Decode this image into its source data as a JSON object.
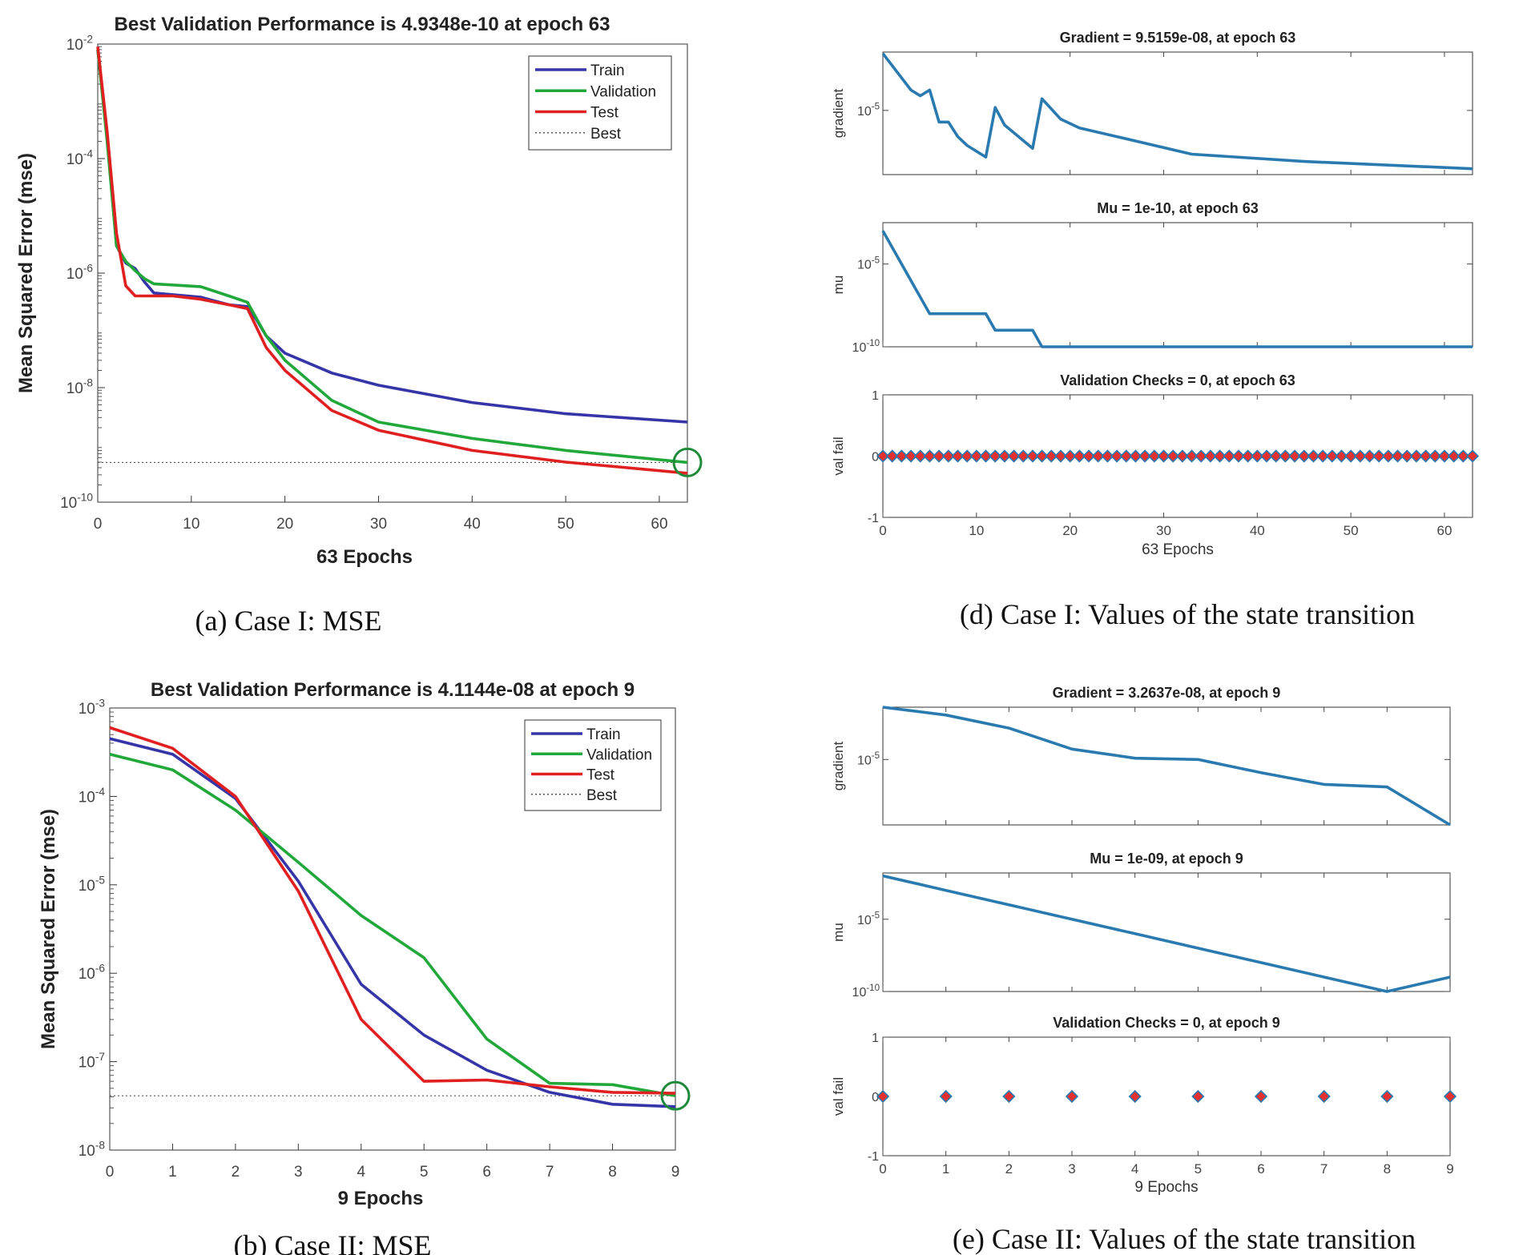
{
  "chart_data": [
    {
      "type": "line",
      "id": "a",
      "title": "Best Validation Performance is 4.9348e-10 at epoch 63",
      "xlabel": "63 Epochs",
      "ylabel": "Mean Squared Error  (mse)",
      "caption": "(a) Case I: MSE",
      "yscale": "log",
      "xlim": [
        0,
        63
      ],
      "ylim_log10": [
        -10,
        -2
      ],
      "xticks": [
        "0",
        "10",
        "20",
        "30",
        "40",
        "50",
        "60"
      ],
      "yticks": [
        {
          "base": "10",
          "exp": "-2"
        },
        {
          "base": "10",
          "exp": "-4"
        },
        {
          "base": "10",
          "exp": "-6"
        },
        {
          "base": "10",
          "exp": "-8"
        },
        {
          "base": "10",
          "exp": "-10"
        }
      ],
      "legend": [
        "Train",
        "Validation",
        "Test",
        "Best"
      ],
      "best": {
        "epoch": 63,
        "value": 4.9348e-10
      },
      "series": [
        {
          "name": "Train",
          "color": "#3535a8",
          "x": [
            0,
            1,
            2,
            3,
            4,
            5,
            6,
            8,
            11,
            14,
            16,
            17,
            18,
            20,
            25,
            30,
            40,
            50,
            63
          ],
          "y": [
            0.008,
            0.00025,
            3e-06,
            1.5e-06,
            1.2e-06,
            7e-07,
            4.5e-07,
            4.2e-07,
            3.8e-07,
            2.8e-07,
            2.6e-07,
            1.5e-07,
            8e-08,
            4e-08,
            1.8e-08,
            1.1e-08,
            5.5e-09,
            3.5e-09,
            2.5e-09
          ]
        },
        {
          "name": "Validation",
          "color": "#22a83a",
          "x": [
            0,
            1,
            2,
            3,
            4,
            5,
            6,
            8,
            11,
            14,
            16,
            18,
            20,
            25,
            30,
            40,
            50,
            63
          ],
          "y": [
            0.008,
            0.0002,
            3e-06,
            1.6e-06,
            1.1e-06,
            8e-07,
            6.5e-07,
            6.2e-07,
            5.8e-07,
            4e-07,
            3.1e-07,
            8e-08,
            3e-08,
            6e-09,
            2.5e-09,
            1.3e-09,
            8e-10,
            4.9348e-10
          ]
        },
        {
          "name": "Test",
          "color": "#e02020",
          "x": [
            0,
            1,
            2,
            3,
            4,
            5,
            8,
            11,
            14,
            16,
            18,
            20,
            25,
            30,
            40,
            50,
            63
          ],
          "y": [
            0.009,
            0.0003,
            5e-06,
            6e-07,
            4e-07,
            4e-07,
            4e-07,
            3.5e-07,
            2.8e-07,
            2.4e-07,
            5e-08,
            2e-08,
            4e-09,
            1.8e-09,
            8e-10,
            5e-10,
            3.2e-10
          ]
        }
      ]
    },
    {
      "type": "line",
      "id": "b",
      "title": "Best Validation Performance is 4.1144e-08 at epoch 9",
      "xlabel": "9 Epochs",
      "ylabel": "Mean Squared Error  (mse)",
      "caption": "(b) Case II: MSE",
      "yscale": "log",
      "xlim": [
        0,
        9
      ],
      "ylim_log10": [
        -8,
        -3
      ],
      "xticks": [
        "0",
        "1",
        "2",
        "3",
        "4",
        "5",
        "6",
        "7",
        "8",
        "9"
      ],
      "yticks": [
        {
          "base": "10",
          "exp": "-3"
        },
        {
          "base": "10",
          "exp": "-4"
        },
        {
          "base": "10",
          "exp": "-5"
        },
        {
          "base": "10",
          "exp": "-6"
        },
        {
          "base": "10",
          "exp": "-7"
        },
        {
          "base": "10",
          "exp": "-8"
        }
      ],
      "legend": [
        "Train",
        "Validation",
        "Test",
        "Best"
      ],
      "best": {
        "epoch": 9,
        "value": 4.1144e-08
      },
      "series": [
        {
          "name": "Train",
          "color": "#3535a8",
          "x": [
            0,
            1,
            2,
            3,
            4,
            5,
            6,
            7,
            8,
            9
          ],
          "y": [
            0.00045,
            0.0003,
            9.5e-05,
            1.1e-05,
            7.5e-07,
            2e-07,
            8e-08,
            4.5e-08,
            3.3e-08,
            3.1e-08
          ]
        },
        {
          "name": "Validation",
          "color": "#22a83a",
          "x": [
            0,
            1,
            2,
            3,
            4,
            5,
            6,
            7,
            8,
            9
          ],
          "y": [
            0.0003,
            0.0002,
            7e-05,
            1.8e-05,
            4.5e-06,
            1.5e-06,
            1.8e-07,
            5.7e-08,
            5.5e-08,
            4.1144e-08
          ]
        },
        {
          "name": "Test",
          "color": "#e02020",
          "x": [
            0,
            1,
            2,
            3,
            4,
            5,
            6,
            7,
            8,
            9
          ],
          "y": [
            0.0006,
            0.00035,
            0.0001,
            8.5e-06,
            3e-07,
            6e-08,
            6.2e-08,
            5.2e-08,
            4.5e-08,
            4.4e-08
          ]
        }
      ]
    },
    {
      "type": "line",
      "id": "d",
      "caption": "(d) Case I: Values of the state transition",
      "xlabel": "63 Epochs",
      "xlim": [
        0,
        63
      ],
      "xticks": [
        "0",
        "10",
        "20",
        "30",
        "40",
        "50",
        "60"
      ],
      "panels": [
        {
          "title": "Gradient = 9.5159e-08, at epoch 63",
          "ylabel": "gradient",
          "yscale": "log",
          "ylim_log10": [
            -7.2,
            -3.0
          ],
          "yticks": [
            {
              "base": "10",
              "exp": "-5",
              "v": -5
            }
          ],
          "color": "#2a7ab0",
          "x": [
            0,
            3,
            4,
            5,
            6,
            7,
            8,
            9,
            11,
            12,
            13,
            16,
            17,
            19,
            21,
            25,
            33,
            45,
            63
          ],
          "y": [
            -3.05,
            -4.3,
            -4.5,
            -4.3,
            -5.4,
            -5.4,
            -5.9,
            -6.2,
            -6.6,
            -4.9,
            -5.5,
            -6.3,
            -4.6,
            -5.3,
            -5.6,
            -5.9,
            -6.5,
            -6.75,
            -7.0
          ]
        },
        {
          "title": "Mu = 1e-10, at epoch 63",
          "ylabel": "mu",
          "yscale": "log",
          "ylim_log10": [
            -10,
            -2.5
          ],
          "yticks": [
            {
              "base": "10",
              "exp": "-5",
              "v": -5
            },
            {
              "base": "10",
              "exp": "-10",
              "v": -10
            }
          ],
          "color": "#2a7ab0",
          "x": [
            0,
            5,
            11,
            12,
            16,
            17,
            63
          ],
          "y": [
            -3,
            -8,
            -8,
            -9,
            -9,
            -10,
            -10
          ]
        },
        {
          "title": "Validation Checks = 0, at epoch 63",
          "ylabel": "val fail",
          "yscale": "linear",
          "ylim": [
            -1,
            1
          ],
          "yticks": [
            {
              "label": "1",
              "v": 1
            },
            {
              "label": "0",
              "v": 0
            },
            {
              "label": "-1",
              "v": -1
            }
          ],
          "markers": true,
          "n_points": 64,
          "value": 0
        }
      ]
    },
    {
      "type": "line",
      "id": "e",
      "caption": "(e) Case II: Values of the state transition",
      "xlabel": "9 Epochs",
      "xlim": [
        0,
        9
      ],
      "xticks": [
        "0",
        "1",
        "2",
        "3",
        "4",
        "5",
        "6",
        "7",
        "8",
        "9"
      ],
      "panels": [
        {
          "title": "Gradient = 3.2637e-08, at epoch 9",
          "ylabel": "gradient",
          "yscale": "log",
          "ylim_log10": [
            -7.5,
            -3.0
          ],
          "yticks": [
            {
              "base": "10",
              "exp": "-5",
              "v": -5
            }
          ],
          "color": "#2a7ab0",
          "x": [
            0,
            1,
            2,
            3,
            4,
            5,
            6,
            7,
            8,
            9
          ],
          "y": [
            -3.0,
            -3.3,
            -3.8,
            -4.6,
            -4.95,
            -5.0,
            -5.5,
            -5.95,
            -6.05,
            -7.5
          ]
        },
        {
          "title": "Mu = 1e-09, at epoch 9",
          "ylabel": "mu",
          "yscale": "log",
          "ylim_log10": [
            -10,
            -1.8
          ],
          "yticks": [
            {
              "base": "10",
              "exp": "-5",
              "v": -5
            },
            {
              "base": "10",
              "exp": "-10",
              "v": -10
            }
          ],
          "color": "#2a7ab0",
          "x": [
            0,
            1,
            2,
            3,
            4,
            5,
            6,
            7,
            8,
            9
          ],
          "y": [
            -2,
            -3,
            -4,
            -5,
            -6,
            -7,
            -8,
            -9,
            -10,
            -9
          ]
        },
        {
          "title": "Validation Checks = 0, at epoch 9",
          "ylabel": "val fail",
          "yscale": "linear",
          "ylim": [
            -1,
            1
          ],
          "yticks": [
            {
              "label": "1",
              "v": 1
            },
            {
              "label": "0",
              "v": 0
            },
            {
              "label": "-1",
              "v": -1
            }
          ],
          "markers": true,
          "n_points": 10,
          "value": 0
        }
      ]
    }
  ]
}
